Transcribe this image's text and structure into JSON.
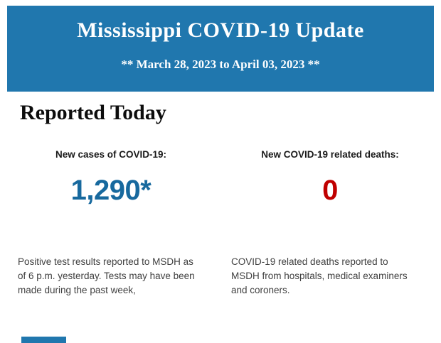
{
  "header": {
    "title": "Mississippi COVID-19 Update",
    "subtitle": "** March 28, 2023 to April 03, 2023 **",
    "background_color": "#2077ae",
    "text_color": "#ffffff"
  },
  "report": {
    "heading": "Reported Today",
    "stats": [
      {
        "label": "New cases of COVID-19:",
        "value": "1,290*",
        "value_color": "#17699e",
        "description": "Positive test results reported to MSDH as of 6 p.m. yesterday. Tests may have been made during the past week,"
      },
      {
        "label": "New COVID-19 related deaths:",
        "value": "0",
        "value_color": "#c00000",
        "description": "COVID-19 related deaths reported to MSDH from hospitals, medical examiners and coroners."
      }
    ]
  },
  "footer": {
    "partial_banner_color": "#2077ae"
  }
}
